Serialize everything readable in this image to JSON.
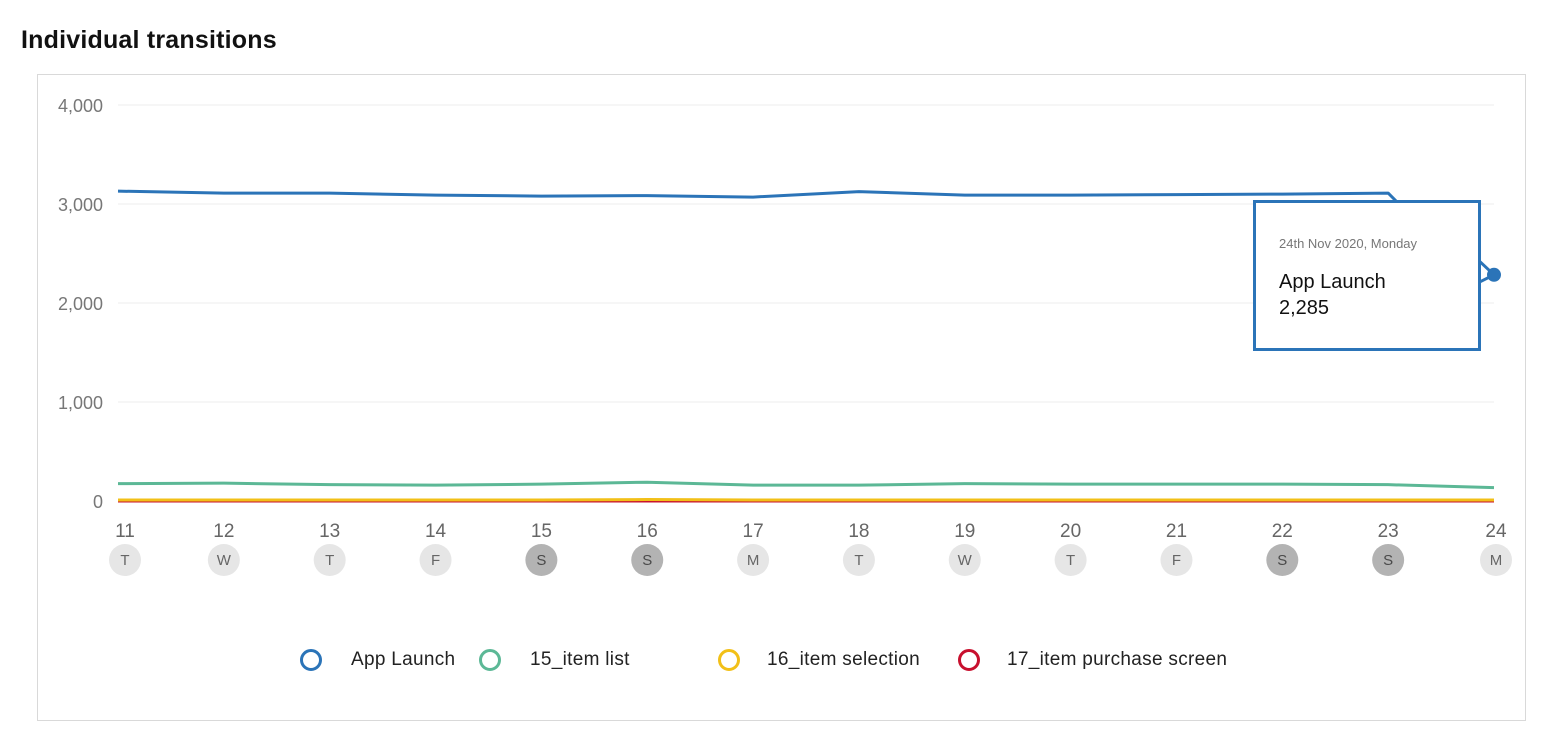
{
  "page": {
    "title": "Individual transitions"
  },
  "chart_data": {
    "type": "line",
    "title": "Individual transitions",
    "xlabel": "",
    "ylabel": "",
    "ylim": [
      0,
      4000
    ],
    "yticks": [
      0,
      1000,
      2000,
      3000,
      4000
    ],
    "ytick_labels": [
      "0",
      "1,000",
      "2,000",
      "3,000",
      "4,000"
    ],
    "x": [
      "11",
      "12",
      "13",
      "14",
      "15",
      "16",
      "17",
      "18",
      "19",
      "20",
      "21",
      "22",
      "23",
      "24"
    ],
    "weekdays": [
      "T",
      "W",
      "T",
      "F",
      "S",
      "S",
      "M",
      "T",
      "W",
      "T",
      "F",
      "S",
      "S",
      "M"
    ],
    "weekend": [
      false,
      false,
      false,
      false,
      true,
      true,
      false,
      false,
      false,
      false,
      false,
      true,
      true,
      false
    ],
    "grid": true,
    "legend_position": "bottom",
    "series": [
      {
        "name": "App Launch",
        "color": "#2b74b8",
        "values": [
          3130,
          3110,
          3110,
          3090,
          3080,
          3085,
          3070,
          3125,
          3090,
          3090,
          3095,
          3100,
          3110,
          2285
        ]
      },
      {
        "name": "15_item list",
        "color": "#5cb896",
        "values": [
          175,
          180,
          165,
          160,
          170,
          190,
          160,
          160,
          175,
          170,
          170,
          170,
          165,
          135
        ]
      },
      {
        "name": "16_item selection",
        "color": "#f2c018",
        "values": [
          10,
          10,
          10,
          10,
          10,
          15,
          10,
          10,
          10,
          10,
          10,
          10,
          10,
          10
        ]
      },
      {
        "name": "17_item purchase screen",
        "color": "#c8102e",
        "values": [
          3,
          3,
          3,
          3,
          3,
          3,
          3,
          3,
          3,
          3,
          3,
          3,
          3,
          3
        ]
      }
    ],
    "tooltip": {
      "date": "24th Nov 2020, Monday",
      "series": "App Launch",
      "value": "2,285",
      "point_index": 13
    }
  },
  "colors": {
    "grid": "#ececec",
    "axis": "#c8102e",
    "weekday_badge": "#e6e6e6",
    "weekend_badge": "#b3b3b3",
    "tooltip_border": "#2b74b8"
  }
}
